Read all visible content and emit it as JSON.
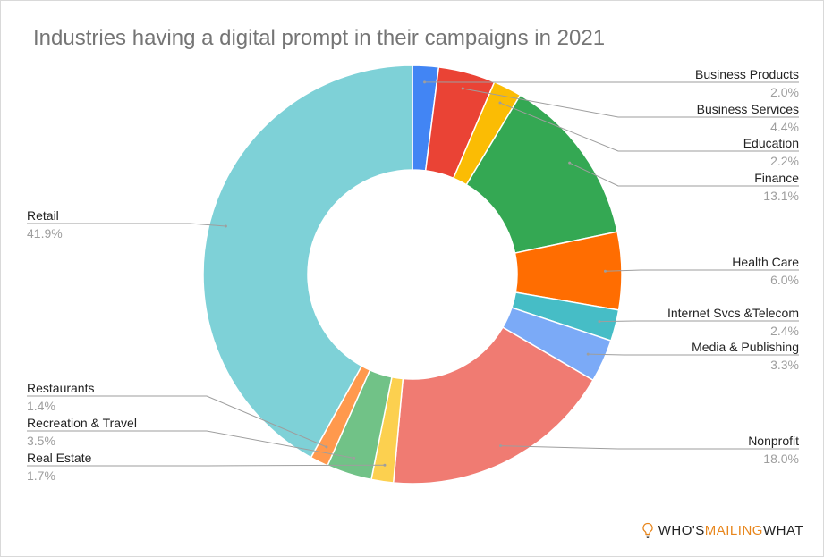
{
  "title": "Industries having a digital prompt in their campaigns in 2021",
  "brand": {
    "part1": "WHO'S ",
    "part2": "MAILING",
    "part3": " WHAT",
    "accent_color": "#e8861c",
    "icon": "lightbulb-icon"
  },
  "chart_data": {
    "type": "pie",
    "donut": true,
    "title": "Industries having a digital prompt in their campaigns in 2021",
    "slices": [
      {
        "label": "Business Products",
        "value": 2.0,
        "display": "2.0%",
        "color": "#4285f4"
      },
      {
        "label": "Business Services",
        "value": 4.4,
        "display": "4.4%",
        "color": "#ea4335"
      },
      {
        "label": "Education",
        "value": 2.2,
        "display": "2.2%",
        "color": "#fbbc04"
      },
      {
        "label": "Finance",
        "value": 13.1,
        "display": "13.1%",
        "color": "#34a853"
      },
      {
        "label": "Health Care",
        "value": 6.0,
        "display": "6.0%",
        "color": "#ff6d01"
      },
      {
        "label": "Internet Svcs &Telecom",
        "value": 2.4,
        "display": "2.4%",
        "color": "#46bdc6"
      },
      {
        "label": "Media & Publishing",
        "value": 3.3,
        "display": "3.3%",
        "color": "#7baaf7"
      },
      {
        "label": "Nonprofit",
        "value": 18.0,
        "display": "18.0%",
        "color": "#f07b72"
      },
      {
        "label": "Real Estate",
        "value": 1.7,
        "display": "1.7%",
        "color": "#fcd04f"
      },
      {
        "label": "Recreation & Travel",
        "value": 3.5,
        "display": "3.5%",
        "color": "#71c287"
      },
      {
        "label": "Restaurants",
        "value": 1.4,
        "display": "1.4%",
        "color": "#ff994d"
      },
      {
        "label": "Retail",
        "value": 41.9,
        "display": "41.9%",
        "color": "#7ed1d7"
      }
    ],
    "legend": "labels with leader lines"
  }
}
